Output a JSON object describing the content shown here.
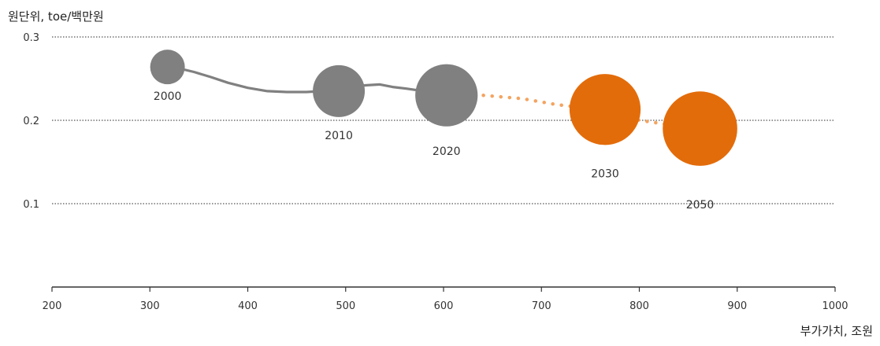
{
  "chart_data": {
    "type": "bubble",
    "ylabel": "원단위, toe/백만원",
    "xlabel": "부가가치, 조원",
    "xlim": [
      200,
      1000
    ],
    "ylim": [
      0,
      0.3
    ],
    "x_ticks": [
      "200",
      "300",
      "400",
      "500",
      "600",
      "700",
      "800",
      "900",
      "1000"
    ],
    "y_ticks": [
      "0.1",
      "0.2",
      "0.3"
    ],
    "gridlines": "horizontal-dotted",
    "colors": {
      "historical": "#808080",
      "projection": "#E36C0A",
      "projection_line": "#F4A460"
    },
    "historical_line": [
      [
        320,
        0.265
      ],
      [
        345,
        0.258
      ],
      [
        362,
        0.252
      ],
      [
        380,
        0.245
      ],
      [
        400,
        0.239
      ],
      [
        420,
        0.235
      ],
      [
        440,
        0.234
      ],
      [
        460,
        0.234
      ],
      [
        475,
        0.235
      ],
      [
        490,
        0.236
      ],
      [
        505,
        0.239
      ],
      [
        520,
        0.242
      ],
      [
        535,
        0.243
      ],
      [
        548,
        0.24
      ],
      [
        562,
        0.238
      ],
      [
        580,
        0.235
      ],
      [
        600,
        0.232
      ]
    ],
    "projection_line": [
      [
        605,
        0.231
      ],
      [
        640,
        0.23
      ],
      [
        680,
        0.226
      ],
      [
        715,
        0.219
      ],
      [
        765,
        0.212
      ],
      [
        800,
        0.2
      ],
      [
        835,
        0.194
      ],
      [
        862,
        0.191
      ]
    ],
    "bubbles": [
      {
        "label": "2000",
        "x": 318,
        "y": 0.264,
        "size": 1.0,
        "group": "historical"
      },
      {
        "label": "2010",
        "x": 493,
        "y": 0.235,
        "size": 1.5,
        "group": "historical"
      },
      {
        "label": "2020",
        "x": 603,
        "y": 0.23,
        "size": 1.8,
        "group": "historical"
      },
      {
        "label": "2030",
        "x": 765,
        "y": 0.213,
        "size": 2.05,
        "group": "projection"
      },
      {
        "label": "2050",
        "x": 862,
        "y": 0.19,
        "size": 2.15,
        "group": "projection"
      }
    ]
  }
}
